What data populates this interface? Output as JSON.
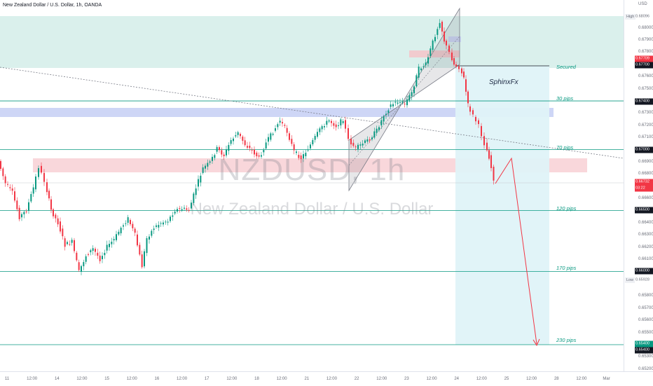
{
  "header": {
    "symbol_line": "New Zealand Dollar / U.S. Dollar, 1h, OANDA"
  },
  "watermark": {
    "ticker": "NZDUSD, 1h",
    "name": "New Zealand Dollar / U.S. Dollar"
  },
  "author": "SphinxFx",
  "currency": "USD",
  "levels": [
    {
      "label": "Secured",
      "price": 0.677
    },
    {
      "label": "30 pips",
      "price": 0.674
    },
    {
      "label": "70 pips",
      "price": 0.67
    },
    {
      "label": "120 pips",
      "price": 0.665
    },
    {
      "label": "170 pips",
      "price": 0.66
    },
    {
      "label": "230 pips",
      "price": 0.654
    }
  ],
  "price_scale": {
    "ticks": [
      "0.68000",
      "0.67900",
      "0.67800",
      "0.67600",
      "0.67500",
      "0.67300",
      "0.67200",
      "0.67100",
      "0.66900",
      "0.66800",
      "0.66600",
      "0.66400",
      "0.66300",
      "0.66200",
      "0.66100",
      "0.65800",
      "0.65700",
      "0.65600",
      "0.65500",
      "0.65300",
      "0.65200"
    ],
    "high_label": "High",
    "high_value": "0.68096",
    "low_label": "Low",
    "low_value": "0.65928",
    "tag_entry": "0.67700",
    "tag_upper": "0.67709",
    "tag_current": "0.66732",
    "tag_countdown": "03:22",
    "tag_30": "0.67400",
    "tag_70": "0.67000",
    "tag_120": "0.66500",
    "tag_170": "0.66000",
    "tag_230a": "0.65400",
    "tag_230b": "0.65400"
  },
  "time_scale": {
    "ticks": [
      {
        "label": "11",
        "day": 0
      },
      {
        "label": "12:00",
        "day": 0.5
      },
      {
        "label": "14",
        "day": 1
      },
      {
        "label": "12:00",
        "day": 1.5
      },
      {
        "label": "15",
        "day": 2
      },
      {
        "label": "12:00",
        "day": 2.5
      },
      {
        "label": "16",
        "day": 3
      },
      {
        "label": "12:00",
        "day": 3.5
      },
      {
        "label": "17",
        "day": 4
      },
      {
        "label": "12:00",
        "day": 4.5
      },
      {
        "label": "18",
        "day": 5
      },
      {
        "label": "12:00",
        "day": 5.5
      },
      {
        "label": "21",
        "day": 6
      },
      {
        "label": "12:00",
        "day": 6.5
      },
      {
        "label": "22",
        "day": 7
      },
      {
        "label": "12:00",
        "day": 7.5
      },
      {
        "label": "23",
        "day": 8
      },
      {
        "label": "12:00",
        "day": 8.5
      },
      {
        "label": "24",
        "day": 9
      },
      {
        "label": "12:00",
        "day": 9.5
      },
      {
        "label": "25",
        "day": 10
      },
      {
        "label": "12:00",
        "day": 10.5
      },
      {
        "label": "28",
        "day": 11
      },
      {
        "label": "12:00",
        "day": 11.5
      },
      {
        "label": "Mar",
        "day": 12
      }
    ]
  },
  "colors": {
    "up": "#089981",
    "down": "#f23645",
    "level_line": "#089981",
    "supply_zone": "#b2dfdb",
    "blue_zone": "#c5cae9",
    "pink_zone": "#f8c8cd",
    "target_box": "#d9f2f7",
    "projection": "#f23645"
  }
}
